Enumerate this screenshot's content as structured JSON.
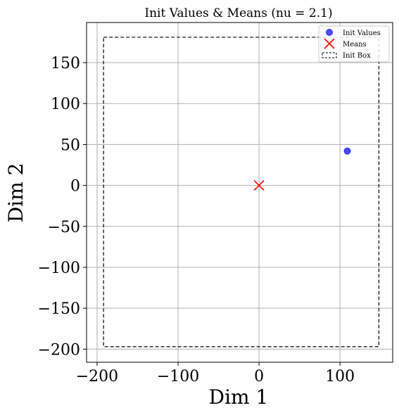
{
  "chart_data": {
    "type": "scatter",
    "title": "Init Values & Means (nu = 2.1)",
    "xlabel": "Dim 1",
    "ylabel": "Dim 2",
    "xlim": [
      -213,
      165
    ],
    "ylim": [
      -216,
      199
    ],
    "xticks": [
      -200,
      -100,
      0,
      100
    ],
    "yticks": [
      -200,
      -150,
      -100,
      -50,
      0,
      50,
      100,
      150
    ],
    "x_tick_labels": [
      "−200",
      "−100",
      "0",
      "100"
    ],
    "y_tick_labels": [
      "−200",
      "−150",
      "−100",
      "−50",
      "0",
      "50",
      "100",
      "150"
    ],
    "grid": true,
    "legend_position": "top-right",
    "series": [
      {
        "name": "Init Values",
        "marker": "circle",
        "color": "#0000ff",
        "points": [
          {
            "x": 109,
            "y": 42
          }
        ]
      },
      {
        "name": "Means",
        "marker": "x",
        "color": "#ff0000",
        "points": [
          {
            "x": 0,
            "y": 0
          }
        ]
      },
      {
        "name": "Init Box",
        "marker": "dashed-rect",
        "color": "#000000",
        "box": {
          "x0": -192,
          "x1": 148,
          "y0": -197,
          "y1": 181
        }
      }
    ]
  }
}
